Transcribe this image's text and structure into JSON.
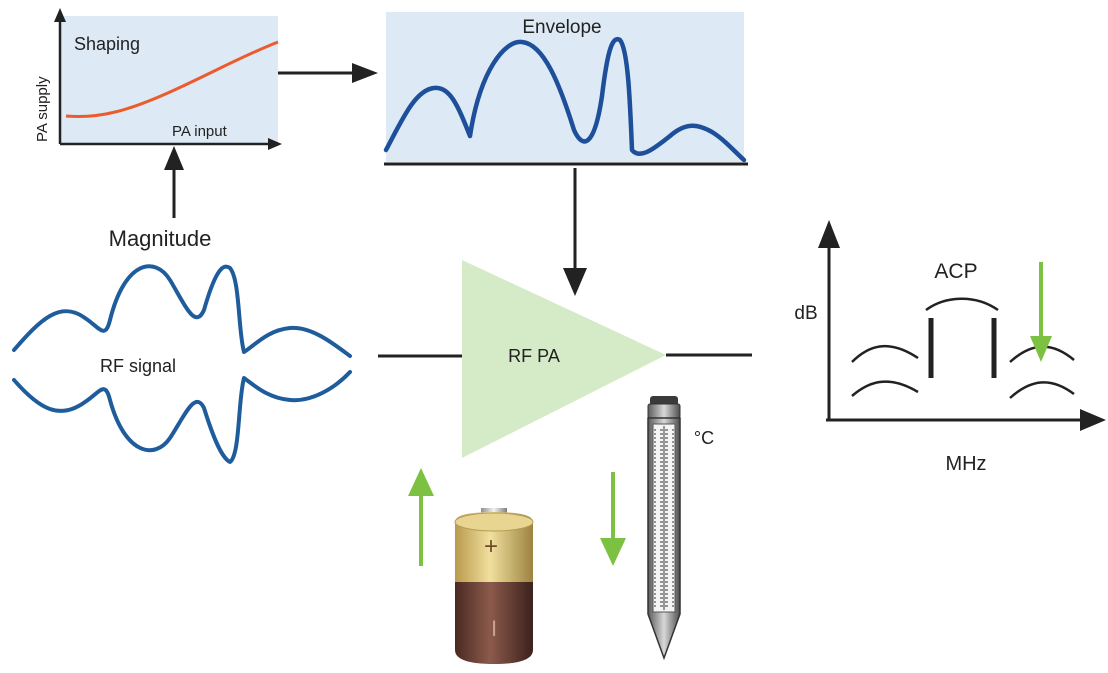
{
  "labels": {
    "shaping": "Shaping",
    "pa_supply": "PA supply",
    "pa_input": "PA input",
    "envelope": "Envelope",
    "magnitude": "Magnitude",
    "rf_signal": "RF signal",
    "rf_pa": "RF PA",
    "degrees_c": "°C",
    "db": "dB",
    "acp": "ACP",
    "mhz": "MHz",
    "battery_plus": "+",
    "battery_minus": "I"
  },
  "colors": {
    "panel_fill": "#dde9f4",
    "waveform": "#1e4f9a",
    "rf_signal": "#1f5c9c",
    "shaping_curve": "#ec5b2c",
    "amplifier": "#d5ebc7",
    "green_arrow": "#7cc142",
    "arrow": "#222222"
  },
  "icons": {
    "battery": "battery-icon",
    "thermometer": "thermometer-icon"
  }
}
